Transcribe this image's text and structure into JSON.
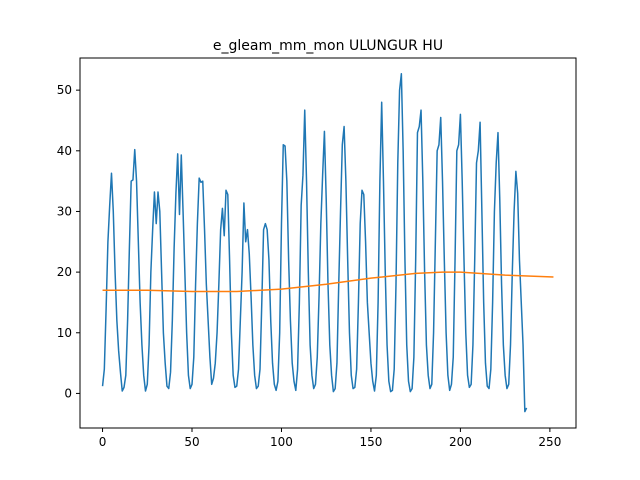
{
  "chart_data": {
    "type": "line",
    "title": "e_gleam_mm_mon ULUNGUR HU",
    "xlabel": "",
    "ylabel": "",
    "xlim": [
      -12.6,
      264.6
    ],
    "ylim": [
      -5.7,
      55.3
    ],
    "xticks": [
      0,
      50,
      100,
      150,
      200,
      250
    ],
    "yticks": [
      0,
      10,
      20,
      30,
      40,
      50
    ],
    "grid": false,
    "legend": "none",
    "series": [
      {
        "color": "#1f77b4",
        "values": [
          1.2,
          4.0,
          14.0,
          25.0,
          31.0,
          36.3,
          30.0,
          20.0,
          12.0,
          7.0,
          3.5,
          0.4,
          1.0,
          3.0,
          12.0,
          24.0,
          35.0,
          35.2,
          40.2,
          35.0,
          25.0,
          15.0,
          8.0,
          3.0,
          0.4,
          1.5,
          8.0,
          20.0,
          27.0,
          33.2,
          28.0,
          33.2,
          30.0,
          20.0,
          10.0,
          5.0,
          1.2,
          0.8,
          3.5,
          12.0,
          24.0,
          33.0,
          39.5,
          29.5,
          39.3,
          30.0,
          20.0,
          10.0,
          3.0,
          0.8,
          1.5,
          6.0,
          18.0,
          28.0,
          35.5,
          34.8,
          35.0,
          27.0,
          18.0,
          12.0,
          6.0,
          1.5,
          2.5,
          5.0,
          10.0,
          18.0,
          27.0,
          30.5,
          26.0,
          33.5,
          32.8,
          22.0,
          10.0,
          3.0,
          1.0,
          1.2,
          4.0,
          12.0,
          20.0,
          31.4,
          25.0,
          27.0,
          23.0,
          16.0,
          8.0,
          3.0,
          0.8,
          1.2,
          4.0,
          15.0,
          27.0,
          28.0,
          27.0,
          22.0,
          12.0,
          5.0,
          1.5,
          0.5,
          2.0,
          10.0,
          28.0,
          41.0,
          40.8,
          35.0,
          22.0,
          12.0,
          5.0,
          2.0,
          0.5,
          4.0,
          15.0,
          31.0,
          36.0,
          46.7,
          35.0,
          20.0,
          8.0,
          3.0,
          0.8,
          1.5,
          6.0,
          16.0,
          28.0,
          36.0,
          43.2,
          32.0,
          18.0,
          8.0,
          3.0,
          0.3,
          0.8,
          5.0,
          18.0,
          30.0,
          41.0,
          44.0,
          35.0,
          22.0,
          10.0,
          3.0,
          0.8,
          1.0,
          4.0,
          15.0,
          28.0,
          33.5,
          32.8,
          25.0,
          15.0,
          10.0,
          5.0,
          2.0,
          0.4,
          3.0,
          15.0,
          35.0,
          48.0,
          35.0,
          20.0,
          8.0,
          2.0,
          0.3,
          0.5,
          4.0,
          18.0,
          38.0,
          50.0,
          52.7,
          40.0,
          22.0,
          8.0,
          2.0,
          0.3,
          0.8,
          6.0,
          22.0,
          43.0,
          44.0,
          46.7,
          35.0,
          20.0,
          8.0,
          3.0,
          0.8,
          1.5,
          10.0,
          25.0,
          40.0,
          41.0,
          45.5,
          35.0,
          22.0,
          10.0,
          3.0,
          0.5,
          1.5,
          6.0,
          22.0,
          40.0,
          41.0,
          46.0,
          35.0,
          22.0,
          10.0,
          3.0,
          1.0,
          1.5,
          8.0,
          22.0,
          38.0,
          40.0,
          44.7,
          30.0,
          15.0,
          5.0,
          1.2,
          0.8,
          4.0,
          15.0,
          30.0,
          38.0,
          43.0,
          32.0,
          18.0,
          8.0,
          3.0,
          0.8,
          1.5,
          8.0,
          20.0,
          30.0,
          36.6,
          33.0,
          22.0,
          15.0,
          8.0,
          -3.0,
          -2.4
        ]
      },
      {
        "color": "#ff7f0e",
        "x": [
          0,
          25,
          50,
          75,
          100,
          125,
          150,
          175,
          190,
          200,
          225,
          252
        ],
        "values": [
          17.0,
          17.0,
          16.8,
          16.8,
          17.2,
          18.0,
          19.0,
          19.8,
          20.0,
          20.0,
          19.5,
          19.2
        ]
      }
    ]
  }
}
